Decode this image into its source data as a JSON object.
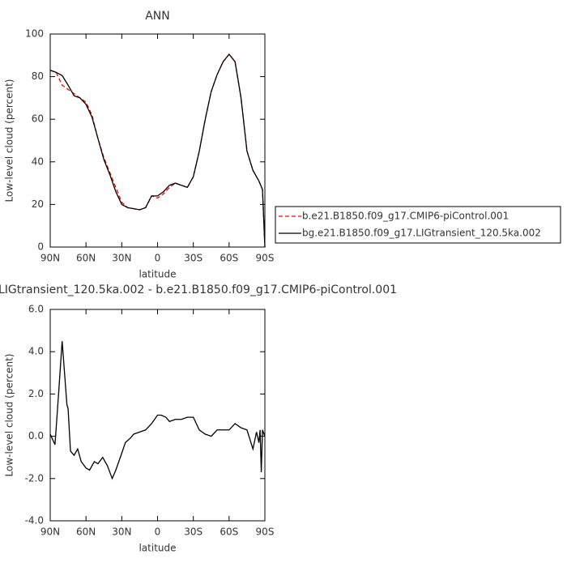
{
  "chart_data": [
    {
      "type": "line",
      "title": "ANN",
      "xlabel": "latitude",
      "ylabel": "Low-level cloud (percent)",
      "x": [
        90,
        85,
        80,
        75,
        70,
        65,
        60,
        55,
        50,
        45,
        40,
        35,
        30,
        25,
        20,
        15,
        10,
        5,
        0,
        -5,
        -10,
        -15,
        -20,
        -25,
        -30,
        -35,
        -40,
        -45,
        -50,
        -55,
        -60,
        -65,
        -70,
        -75,
        -80,
        -85,
        -88,
        -90
      ],
      "series": [
        {
          "name": "b.e21.B1850.f09_g17.CMIP6-piControl.001",
          "color": "#ff0000",
          "style": "dashed",
          "values": [
            83,
            82,
            76,
            74,
            72,
            70,
            68,
            62,
            51,
            42,
            35,
            28,
            21,
            18.5,
            18,
            17.5,
            18.5,
            24,
            23,
            25,
            28,
            30,
            29,
            28,
            33,
            45,
            60,
            73,
            81,
            87,
            90.5,
            87,
            70,
            45,
            36,
            31,
            27,
            0
          ]
        },
        {
          "name": "bg.e21.B1850.f09_g17.LIGtransient_120.5ka.002",
          "color": "#000000",
          "style": "solid",
          "values": [
            83,
            82,
            80.5,
            76,
            71,
            70,
            67,
            61,
            51,
            41,
            34,
            26,
            20,
            18.5,
            18,
            17.5,
            18.5,
            24,
            24,
            26,
            29,
            30,
            29,
            28,
            33,
            45,
            60,
            73,
            81,
            87,
            90.5,
            87,
            70,
            45,
            36,
            31,
            27,
            0
          ]
        }
      ],
      "xlim": [
        90,
        -90
      ],
      "xticks": [
        {
          "value": 90,
          "label": "90N"
        },
        {
          "value": 60,
          "label": "60N"
        },
        {
          "value": 30,
          "label": "30N"
        },
        0,
        {
          "value": -30,
          "label": "30S"
        },
        {
          "value": -60,
          "label": "60S"
        },
        {
          "value": -90,
          "label": "90S"
        }
      ],
      "ylim": [
        0,
        100
      ],
      "yticks": [
        0,
        20,
        40,
        60,
        80,
        100
      ],
      "legend": "right"
    },
    {
      "type": "line",
      "title": "LIGtransient_120.5ka.002 - b.e21.B1850.f09_g17.CMIP6-piControl.001",
      "xlabel": "latitude",
      "ylabel": "Low-level cloud (percent)",
      "x": [
        90,
        86,
        83,
        80,
        78,
        76,
        75,
        73,
        70,
        67,
        64,
        60,
        57,
        53,
        50,
        46,
        42,
        38,
        35,
        30,
        27,
        23,
        20,
        15,
        10,
        5,
        0,
        -3,
        -7,
        -10,
        -15,
        -20,
        -25,
        -30,
        -35,
        -40,
        -45,
        -50,
        -55,
        -60,
        -65,
        -70,
        -75,
        -80,
        -83,
        -85,
        -86,
        -87,
        -88,
        -90
      ],
      "series": [
        {
          "color": "#000000",
          "style": "solid",
          "values": [
            0.1,
            -0.4,
            2.0,
            4.5,
            3.0,
            1.5,
            1.3,
            -0.7,
            -0.9,
            -0.6,
            -1.2,
            -1.5,
            -1.6,
            -1.2,
            -1.3,
            -1.0,
            -1.4,
            -2.0,
            -1.6,
            -0.8,
            -0.3,
            -0.1,
            0.1,
            0.2,
            0.3,
            0.6,
            1.0,
            1.0,
            0.9,
            0.7,
            0.8,
            0.8,
            0.9,
            0.9,
            0.3,
            0.1,
            0,
            0.3,
            0.3,
            0.3,
            0.6,
            0.4,
            0.3,
            -0.6,
            0.2,
            -0.3,
            0.3,
            -1.7,
            0.3,
            0
          ]
        }
      ],
      "xlim": [
        90,
        -90
      ],
      "xticks": [
        {
          "value": 90,
          "label": "90N"
        },
        {
          "value": 60,
          "label": "60N"
        },
        {
          "value": 30,
          "label": "30N"
        },
        0,
        {
          "value": -30,
          "label": "30S"
        },
        {
          "value": -60,
          "label": "60S"
        },
        {
          "value": -90,
          "label": "90S"
        }
      ],
      "ylim": [
        -4,
        6
      ],
      "yticks": [
        {
          "value": -4,
          "label": "-4.0"
        },
        {
          "value": -2,
          "label": "-2.0"
        },
        {
          "value": 0,
          "label": "0.0"
        },
        {
          "value": 2,
          "label": "2.0"
        },
        {
          "value": 4,
          "label": "4.0"
        },
        {
          "value": 6,
          "label": "6.0"
        }
      ]
    }
  ]
}
